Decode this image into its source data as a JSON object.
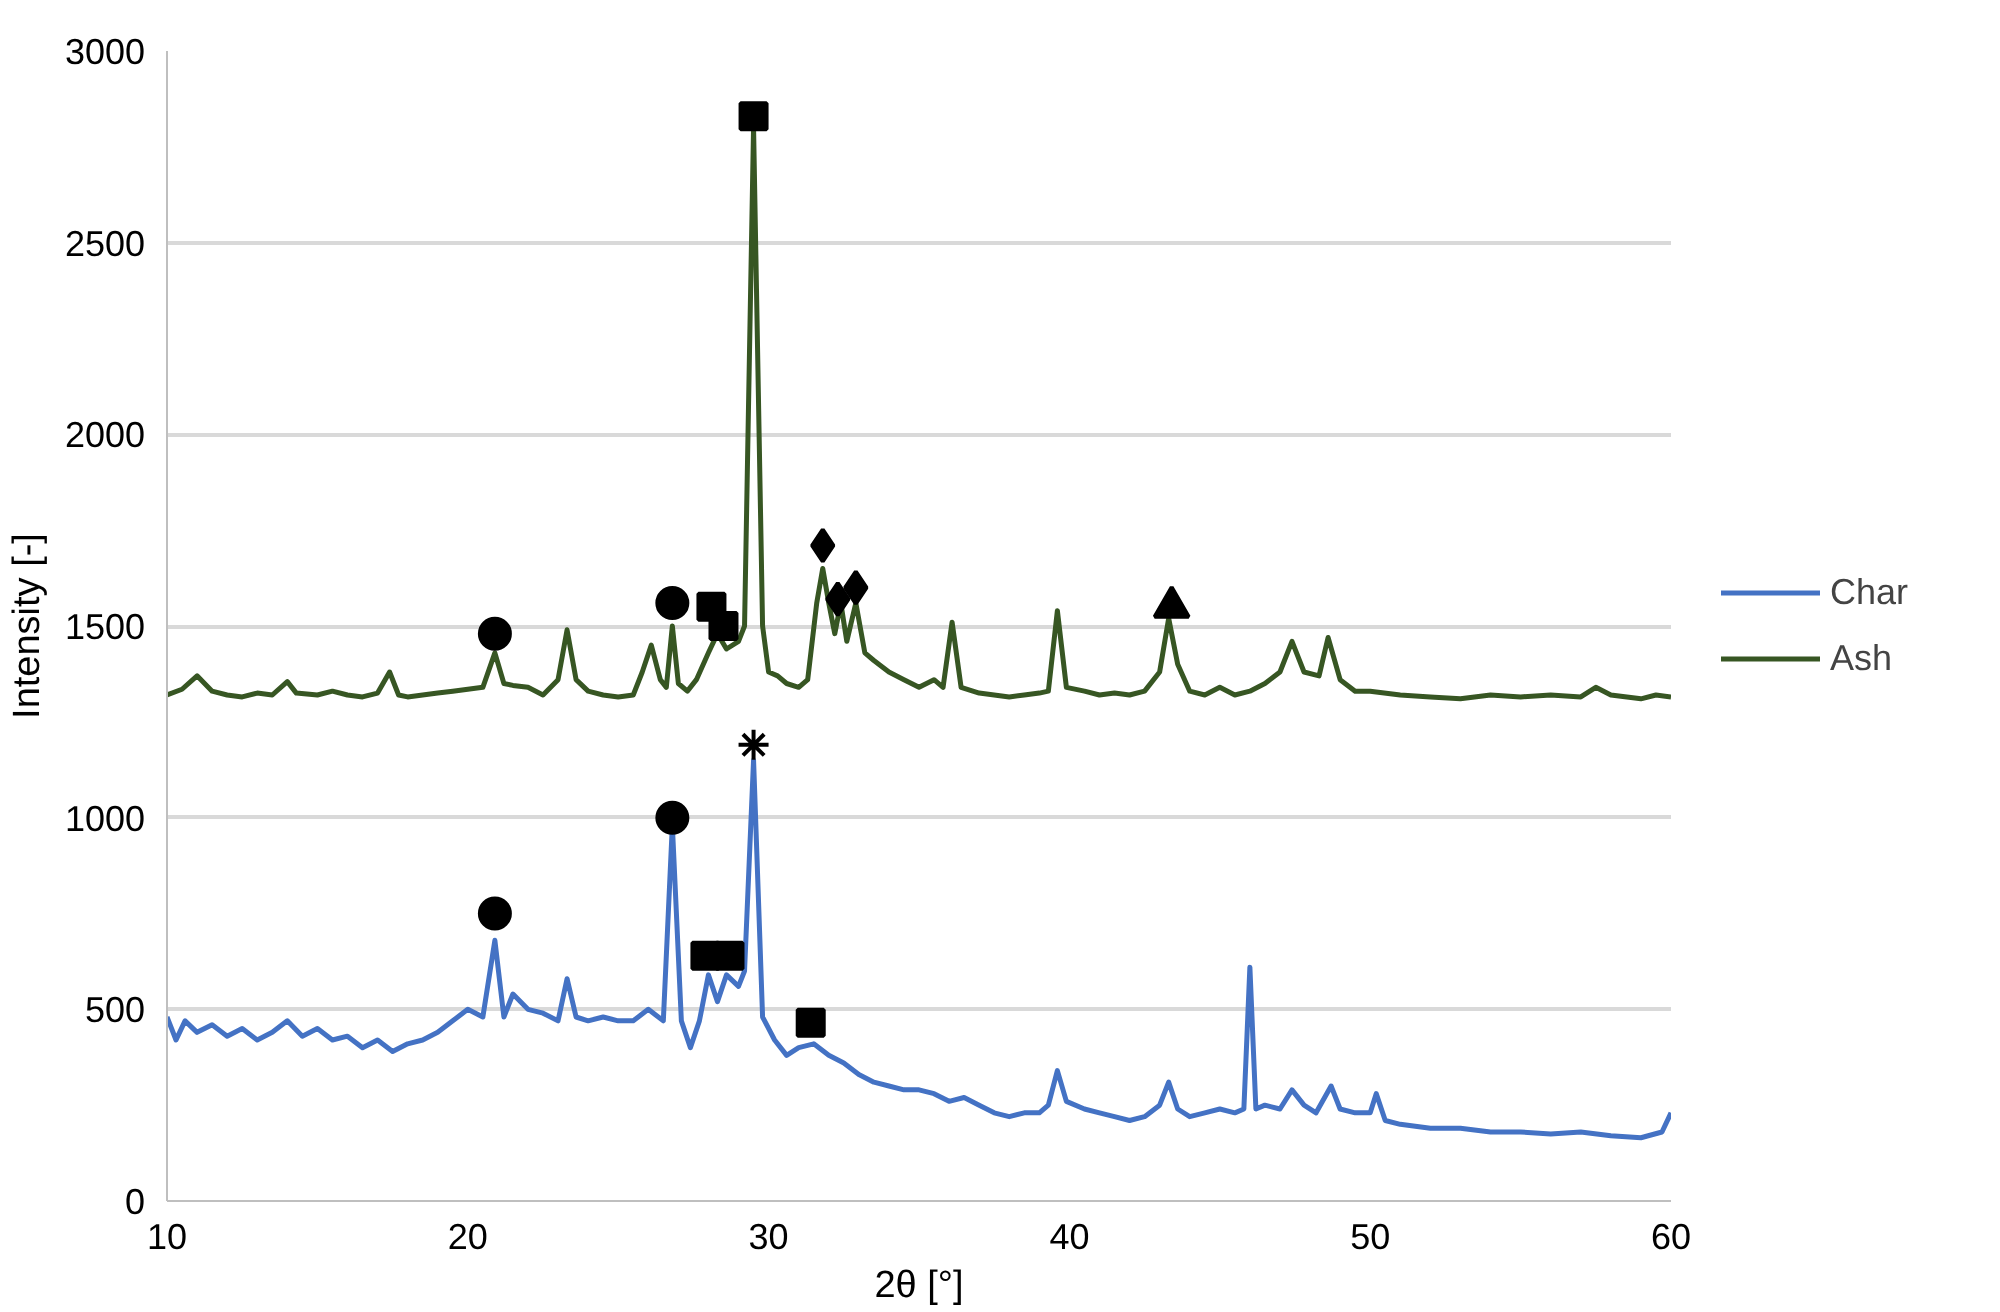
{
  "chart_data": {
    "type": "line",
    "xlabel": "2θ [°]",
    "ylabel": "Intensity [-]",
    "xlim": [
      10,
      60
    ],
    "ylim": [
      0,
      3000
    ],
    "xticks": [
      10,
      20,
      30,
      40,
      50,
      60
    ],
    "yticks": [
      0,
      500,
      1000,
      1500,
      2000,
      2500,
      3000
    ],
    "grid": "y",
    "legend": "right",
    "marker": "none",
    "line_style": "solid",
    "series": [
      {
        "name": "Char",
        "color": "#4472c4",
        "x": [
          10.0,
          10.3,
          10.6,
          11,
          11.5,
          12,
          12.5,
          13,
          13.5,
          14,
          14.5,
          15,
          15.5,
          16,
          16.5,
          17,
          17.5,
          18,
          18.5,
          19,
          19.5,
          20,
          20.5,
          20.9,
          21.2,
          21.5,
          22,
          22.5,
          23,
          23.3,
          23.6,
          24,
          24.5,
          25,
          25.5,
          26,
          26.5,
          26.8,
          27.1,
          27.4,
          27.7,
          28.0,
          28.3,
          28.6,
          29.0,
          29.2,
          29.5,
          29.8,
          30.2,
          30.6,
          31,
          31.5,
          32,
          32.5,
          33,
          33.5,
          34,
          34.5,
          35,
          35.5,
          36,
          36.5,
          37,
          37.5,
          38,
          38.5,
          39,
          39.3,
          39.6,
          39.9,
          40.5,
          41,
          41.5,
          42,
          42.5,
          43.0,
          43.3,
          43.6,
          44,
          44.5,
          45,
          45.5,
          45.8,
          46.0,
          46.2,
          46.5,
          47,
          47.4,
          47.8,
          48.2,
          48.7,
          49,
          49.5,
          50,
          50.2,
          50.5,
          51,
          52,
          53,
          54,
          55,
          56,
          57,
          58,
          59,
          59.7,
          60
        ],
        "values": [
          480,
          420,
          470,
          440,
          460,
          430,
          450,
          420,
          440,
          470,
          430,
          450,
          420,
          430,
          400,
          420,
          390,
          410,
          420,
          440,
          470,
          500,
          480,
          680,
          480,
          540,
          500,
          490,
          470,
          580,
          480,
          470,
          480,
          470,
          470,
          500,
          470,
          980,
          470,
          400,
          470,
          590,
          520,
          590,
          560,
          600,
          1150,
          480,
          420,
          380,
          400,
          410,
          380,
          360,
          330,
          310,
          300,
          290,
          290,
          280,
          260,
          270,
          250,
          230,
          220,
          230,
          230,
          250,
          340,
          260,
          240,
          230,
          220,
          210,
          220,
          250,
          310,
          240,
          220,
          230,
          240,
          230,
          240,
          610,
          240,
          250,
          240,
          290,
          250,
          230,
          300,
          240,
          230,
          230,
          280,
          210,
          200,
          190,
          190,
          180,
          180,
          175,
          180,
          170,
          165,
          180,
          230
        ]
      },
      {
        "name": "Ash",
        "color": "#375623",
        "x": [
          10.0,
          10.5,
          11.0,
          11.5,
          12,
          12.5,
          13,
          13.5,
          14,
          14.3,
          15,
          15.5,
          16,
          16.5,
          17,
          17.4,
          17.7,
          18,
          18.5,
          19,
          19.5,
          20,
          20.5,
          20.9,
          21.2,
          21.5,
          22,
          22.5,
          23.0,
          23.3,
          23.6,
          24,
          24.5,
          25,
          25.5,
          25.8,
          26.1,
          26.4,
          26.6,
          26.8,
          27.0,
          27.3,
          27.6,
          28.0,
          28.3,
          28.6,
          29.0,
          29.2,
          29.5,
          29.8,
          30.0,
          30.3,
          30.6,
          31.0,
          31.3,
          31.6,
          31.8,
          32.0,
          32.2,
          32.4,
          32.6,
          32.9,
          33.2,
          33.5,
          34.0,
          34.5,
          35,
          35.5,
          35.8,
          36.1,
          36.4,
          37,
          37.5,
          38,
          38.5,
          39,
          39.3,
          39.6,
          39.9,
          40.5,
          41,
          41.5,
          42,
          42.5,
          43.0,
          43.3,
          43.6,
          44,
          44.5,
          45,
          45.5,
          46,
          46.5,
          47,
          47.4,
          47.8,
          48.3,
          48.6,
          49,
          49.5,
          50,
          51,
          52,
          53,
          54,
          55,
          56,
          57,
          57.5,
          58,
          59,
          59.5,
          60
        ],
        "values": [
          1320,
          1335,
          1370,
          1330,
          1320,
          1315,
          1325,
          1320,
          1355,
          1325,
          1320,
          1330,
          1320,
          1315,
          1325,
          1380,
          1320,
          1315,
          1320,
          1325,
          1330,
          1335,
          1340,
          1430,
          1350,
          1345,
          1340,
          1320,
          1360,
          1490,
          1360,
          1330,
          1320,
          1315,
          1320,
          1380,
          1450,
          1360,
          1340,
          1500,
          1350,
          1330,
          1360,
          1430,
          1480,
          1440,
          1460,
          1500,
          2800,
          1500,
          1380,
          1370,
          1350,
          1340,
          1360,
          1560,
          1650,
          1560,
          1480,
          1560,
          1460,
          1560,
          1430,
          1410,
          1380,
          1360,
          1340,
          1360,
          1340,
          1510,
          1340,
          1325,
          1320,
          1315,
          1320,
          1325,
          1330,
          1540,
          1340,
          1330,
          1320,
          1325,
          1320,
          1330,
          1380,
          1520,
          1400,
          1330,
          1320,
          1340,
          1320,
          1330,
          1350,
          1380,
          1460,
          1380,
          1370,
          1470,
          1360,
          1330,
          1330,
          1320,
          1315,
          1310,
          1320,
          1315,
          1320,
          1315,
          1340,
          1320,
          1310,
          1320,
          1315
        ]
      },
      {
        "type": "scatter",
        "marker": "circle",
        "color": "#000000",
        "x": [
          20.9,
          26.8,
          20.9,
          26.8
        ],
        "values": [
          750,
          1000,
          1480,
          1560
        ]
      },
      {
        "type": "scatter",
        "marker": "square",
        "color": "#000000",
        "x": [
          27.9,
          28.7,
          31.4,
          29.5,
          28.1,
          28.5
        ],
        "values": [
          640,
          640,
          465,
          2830,
          1550,
          1500
        ]
      },
      {
        "type": "scatter",
        "marker": "cross",
        "color": "#000000",
        "x": [
          29.5
        ],
        "values": [
          1190
        ]
      },
      {
        "type": "scatter",
        "marker": "diamond",
        "color": "#000000",
        "x": [
          31.8,
          32.3,
          32.9
        ],
        "values": [
          1710,
          1570,
          1600
        ]
      },
      {
        "type": "scatter",
        "marker": "triangle",
        "color": "#000000",
        "x": [
          43.4
        ],
        "values": [
          1550
        ]
      }
    ]
  }
}
